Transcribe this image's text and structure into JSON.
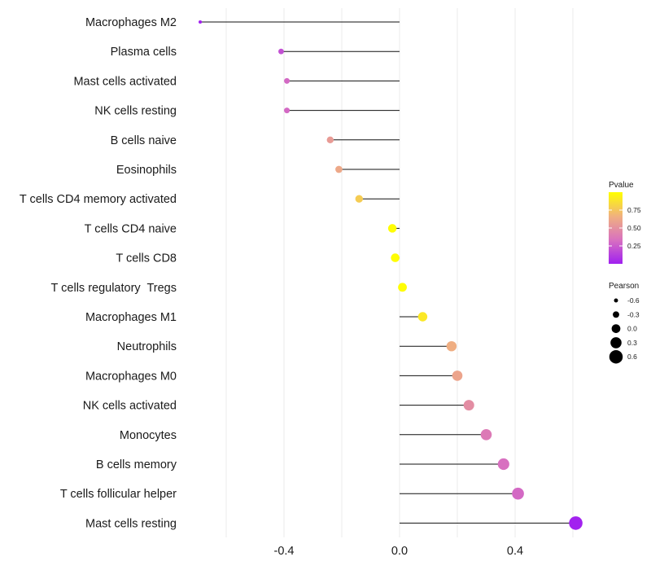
{
  "chart_data": {
    "type": "lollipop",
    "xlabel": "",
    "ylabel": "",
    "xlim": [
      -0.69,
      0.63
    ],
    "xticks": [
      -0.4,
      0.0,
      0.4
    ],
    "xtick_labels": [
      "-0.4",
      "0.0",
      "0.4"
    ],
    "categories": [
      "Macrophages M2",
      "Plasma cells",
      "Mast cells activated",
      "NK cells resting",
      "B cells naive",
      "Eosinophils",
      "T cells CD4 memory activated",
      "T cells CD4 naive",
      "T cells CD8",
      "T cells regulatory  Tregs",
      "Macrophages M1",
      "Neutrophils",
      "Macrophages M0",
      "NK cells activated",
      "Monocytes",
      "B cells memory",
      "T cells follicular helper",
      "Mast cells resting"
    ],
    "pearson": [
      -0.69,
      -0.41,
      -0.39,
      -0.39,
      -0.24,
      -0.21,
      -0.14,
      -0.025,
      -0.015,
      0.01,
      0.08,
      0.18,
      0.2,
      0.24,
      0.3,
      0.36,
      0.41,
      0.61
    ],
    "pvalue": [
      0.01,
      0.2,
      0.3,
      0.3,
      0.55,
      0.62,
      0.78,
      0.99,
      0.99,
      0.99,
      0.9,
      0.65,
      0.6,
      0.48,
      0.38,
      0.33,
      0.3,
      0.01
    ],
    "legend_pvalue": {
      "title": "Pvalue",
      "ticks": [
        0.25,
        0.5,
        0.75
      ],
      "tick_labels": [
        "0.25",
        "0.50",
        "0.75"
      ],
      "colors": [
        "#A020F0",
        "#D870C0",
        "#F0B080",
        "#FFFF00"
      ]
    },
    "legend_pearson": {
      "title": "Pearson",
      "values": [
        -0.6,
        -0.3,
        0.0,
        0.3,
        0.6
      ],
      "labels": [
        "-0.6",
        "-0.3",
        "0.0",
        "0.3",
        "0.6"
      ]
    },
    "legend_position": "right"
  }
}
